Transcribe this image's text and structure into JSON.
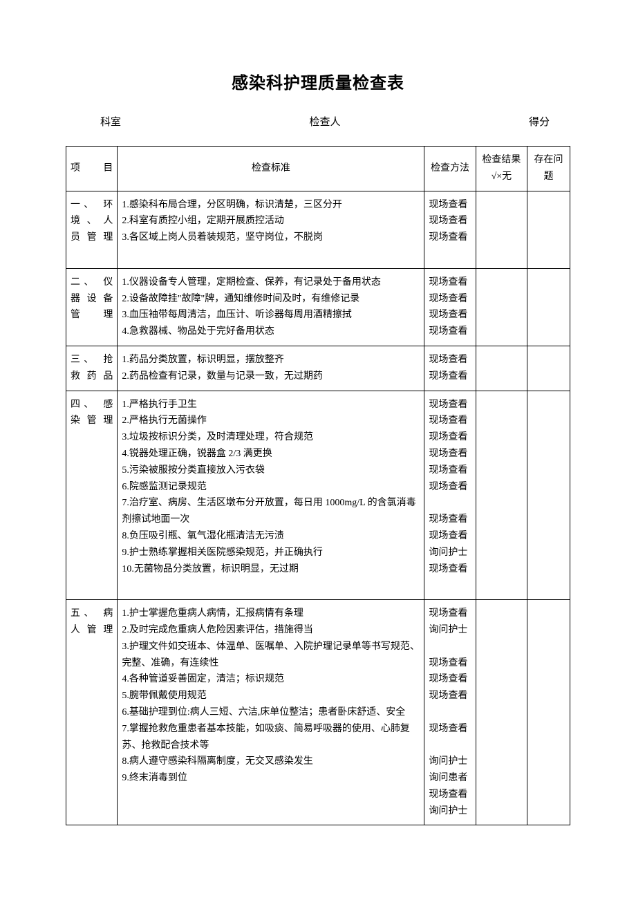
{
  "document": {
    "title": "感染科护理质量检查表",
    "background_color": "#ffffff",
    "text_color": "#000000",
    "border_color": "#000000",
    "title_fontsize": 24,
    "body_fontsize": 14
  },
  "header": {
    "field1_label": "科室",
    "field2_label": "检查人",
    "field3_label": "得分"
  },
  "table": {
    "columns": {
      "category": "项　　目",
      "criteria": "检查标准",
      "method": "检查方法",
      "result": "检查结果√×无",
      "issue": "存在问题"
    },
    "sections": [
      {
        "category_lines": [
          "一、 环",
          "境 、 人",
          "员 管 理"
        ],
        "items": [
          {
            "text": "1.感染科布局合理，分区明确，标识清楚，三区分开",
            "method": "现场查看"
          },
          {
            "text": "2.科室有质控小组，定期开展质控活动",
            "method": "现场查看"
          },
          {
            "text": "3.各区域上岗人员着装规范，坚守岗位，不脱岗",
            "method": "现场查看"
          },
          {
            "text": " ",
            "method": ""
          }
        ]
      },
      {
        "category_lines": [
          "二、 仪",
          "器 设 备",
          "管理"
        ],
        "items": [
          {
            "text": "1.仪器设备专人管理，定期检查、保养，有记录处于备用状态",
            "method": "现场查看"
          },
          {
            "text": "2.设备故障挂\"故障\"牌，通知维修时间及时，有维修记录",
            "method": "现场查看"
          },
          {
            "text": "3.血压袖带每周清洁，血压计、听诊器每周用酒精擦拭",
            "method": "现场查看"
          },
          {
            "text": "4.急救器械、物品处于完好备用状态",
            "method": "现场查看"
          }
        ]
      },
      {
        "category_lines": [
          "三、 抢",
          "救 药 品"
        ],
        "items": [
          {
            "text": "1.药品分类放置，标识明显，摆放整齐",
            "method": "现场查看"
          },
          {
            "text": "2.药品检查有记录，数量与记录一致，无过期药",
            "method": "现场查看"
          }
        ]
      },
      {
        "category_lines": [
          "四、 感",
          "染 管 理"
        ],
        "items": [
          {
            "text": "1.严格执行手卫生",
            "method": "现场查看"
          },
          {
            "text": "2.严格执行无菌操作",
            "method": "现场查看"
          },
          {
            "text": "3.垃圾按标识分类，及时清理处理，符合规范",
            "method": "现场查看"
          },
          {
            "text": "4.锐器处理正确，锐器盒 2/3 满更换",
            "method": "现场查看"
          },
          {
            "text": "5.污染被服按分类直接放入污衣袋",
            "method": "现场查看"
          },
          {
            "text": "6.院感监测记录规范",
            "method": "现场查看"
          },
          {
            "text": "7.治疗室、病房、生活区墩布分开放置，每日用 1000mg/L 的含氯消毒剂擦试地面一次",
            "method": "现场查看",
            "method_blank_before": true
          },
          {
            "text": "8.负压吸引瓶、氧气湿化瓶清洁无污渍",
            "method": "现场查看"
          },
          {
            "text": "9.护士熟练掌握相关医院感染规范，并正确执行",
            "method": "询问护士"
          },
          {
            "text": "10.无菌物品分类放置，标识明显，无过期",
            "method": "现场查看"
          },
          {
            "text": " ",
            "method": ""
          }
        ]
      },
      {
        "category_lines": [
          "五、 病",
          "人 管 理"
        ],
        "items": [
          {
            "text": "1.护士掌握危重病人病情，汇报病情有条理",
            "method": "现场查看"
          },
          {
            "text": "2.及时完成危重病人危险因素评估，措施得当",
            "method": "询问护士"
          },
          {
            "text": "3.护理文件如交班本、体温单、医嘱单、入院护理记录单等书写规范、完整、准确，有连续性",
            "method": "现场查看",
            "method_blank_before": true
          },
          {
            "text": "4.各种管道妥善固定，清洁；标识规范",
            "method": "现场查看"
          },
          {
            "text": "5.腕带佩戴使用规范",
            "method": "现场查看"
          },
          {
            "text": "6.基础护理到位:病人三短、六洁,床单位整洁；患者卧床舒适、安全",
            "method": "现场查看",
            "method_blank_before": true
          },
          {
            "text": "7.掌握抢救危重患者基本技能，如吸痰、简易呼吸器的使用、心肺复苏、抢救配合技术等",
            "method": "询问护士",
            "method_blank_before": true
          },
          {
            "text": "8.病人遵守感染科隔离制度，无交叉感染发生",
            "method": "询问患者"
          },
          {
            "text": "9.终末消毒到位",
            "method": "现场查看"
          },
          {
            "text": "",
            "method": "询问护士"
          }
        ]
      }
    ]
  }
}
